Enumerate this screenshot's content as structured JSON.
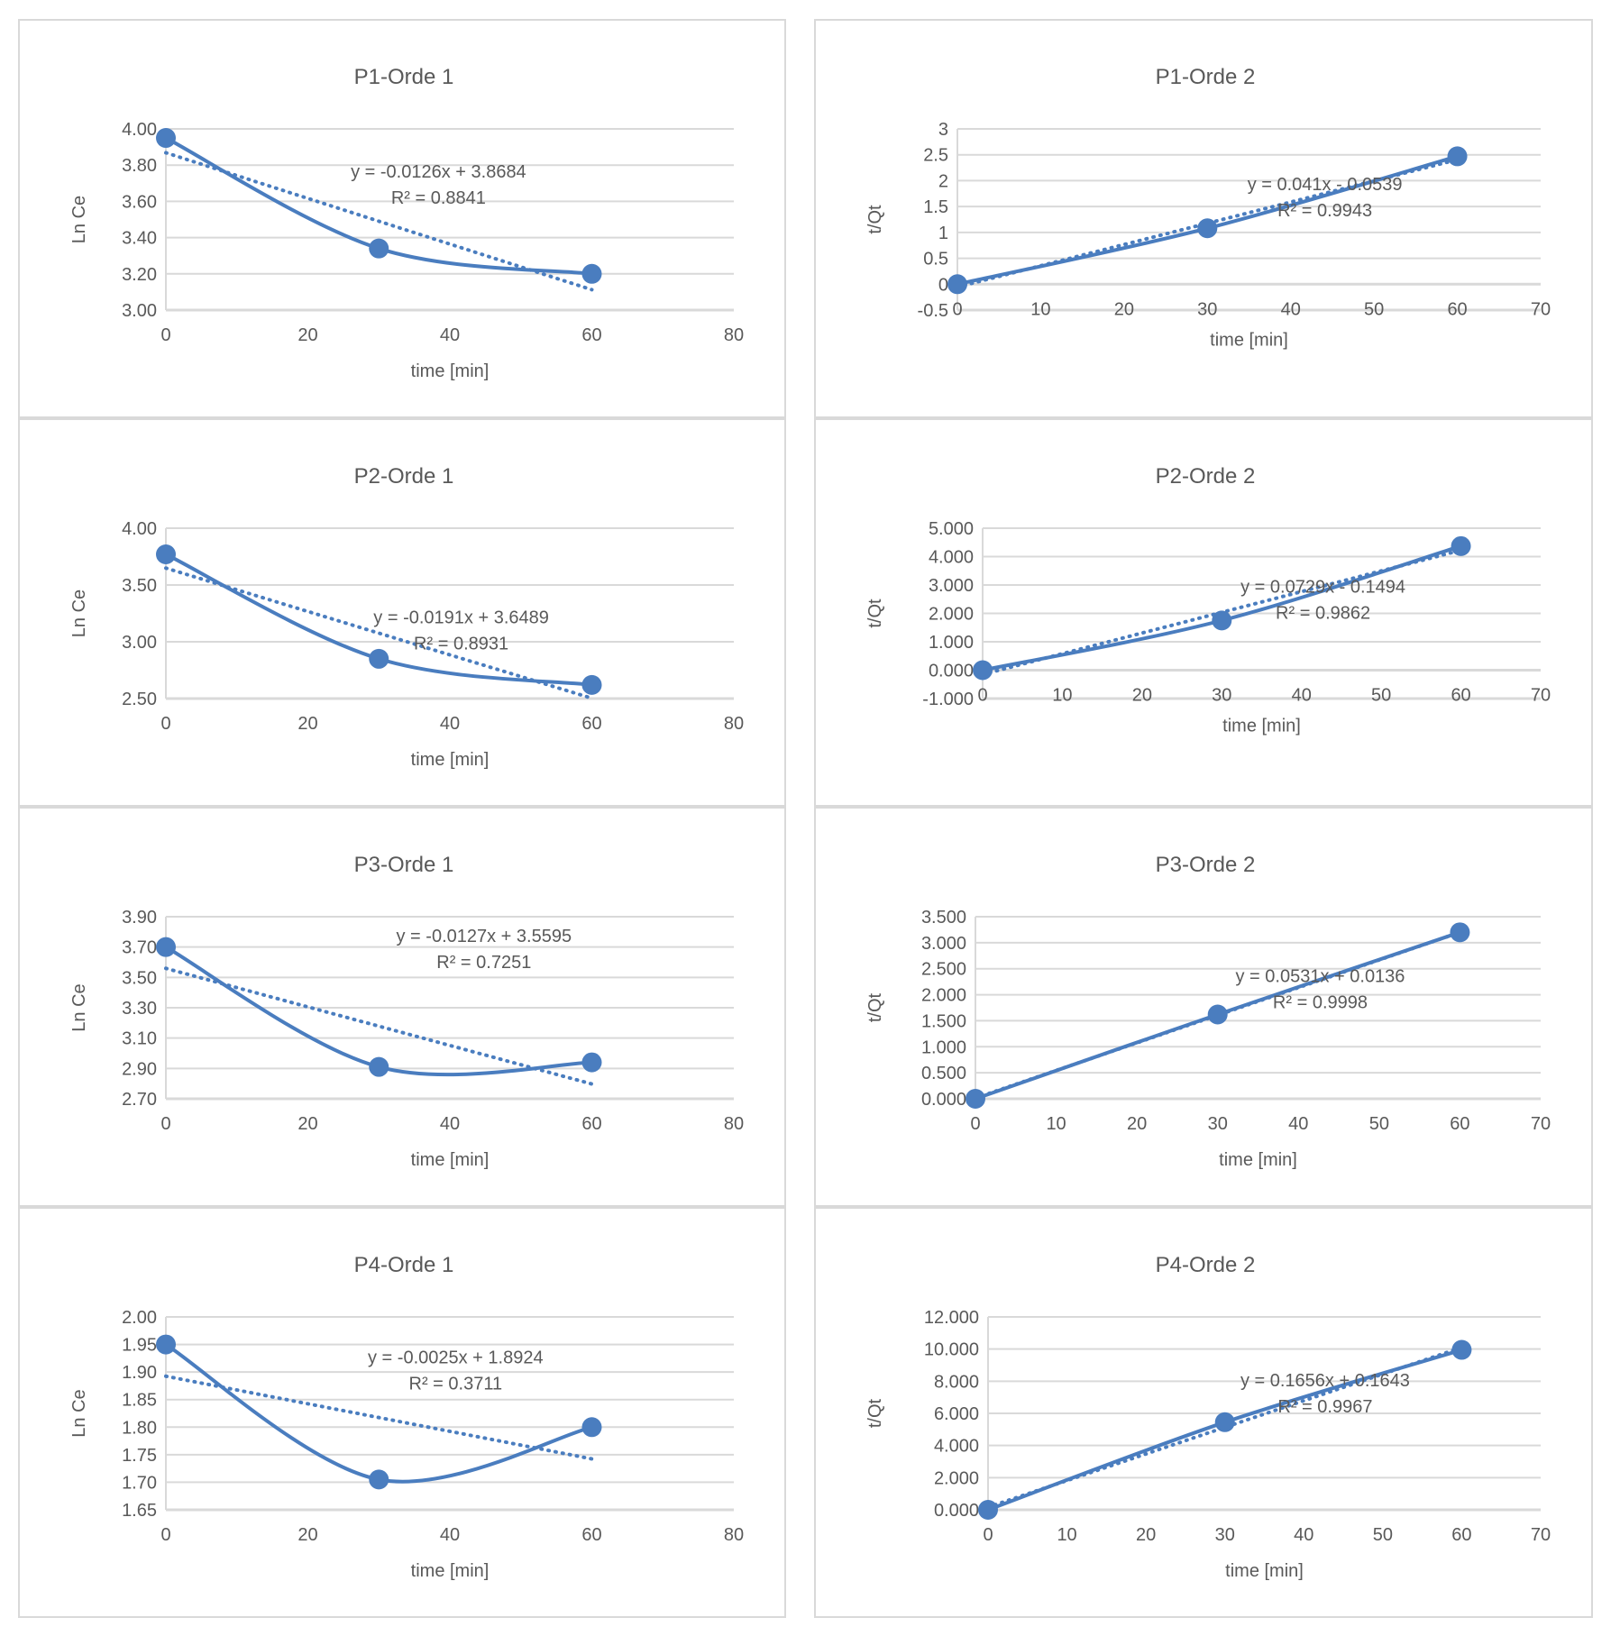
{
  "colors": {
    "series": "#4a7dbf",
    "grid": "#d9d9d9",
    "text": "#595959"
  },
  "chart_data": [
    {
      "type": "line",
      "title": "P1-Orde 1",
      "xlabel": "time [min]",
      "ylabel": "Ln Ce",
      "x": [
        0,
        30,
        60
      ],
      "y": [
        3.95,
        3.34,
        3.2
      ],
      "xlim": [
        0,
        80
      ],
      "xticks": [
        0,
        20,
        40,
        60,
        80
      ],
      "ylim": [
        3.0,
        4.0
      ],
      "yticks": [
        "3.00",
        "3.20",
        "3.40",
        "3.60",
        "3.80",
        "4.00"
      ],
      "trendline": {
        "type": "linear",
        "slope": -0.0126,
        "intercept": 3.8684,
        "equation": "y = -0.0126x + 3.8684",
        "r2": "R² = 0.8841"
      },
      "grid": true,
      "smoothed": true
    },
    {
      "type": "line",
      "title": "P1-Orde 2",
      "xlabel": "time [min]",
      "ylabel": "t/Qt",
      "x": [
        0,
        30,
        60
      ],
      "y": [
        0,
        1.08,
        2.47
      ],
      "xlim": [
        0,
        70
      ],
      "xticks": [
        0,
        10,
        20,
        30,
        40,
        50,
        60,
        70
      ],
      "ylim": [
        -0.5,
        3
      ],
      "yticks": [
        "-0.5",
        "0",
        "0.5",
        "1",
        "1.5",
        "2",
        "2.5",
        "3"
      ],
      "trendline": {
        "type": "linear",
        "slope": 0.041,
        "intercept": -0.0539,
        "equation": "y = 0.041x - 0.0539",
        "r2": "R² = 0.9943"
      },
      "grid": true,
      "smoothed": true
    },
    {
      "type": "line",
      "title": "P2-Orde 1",
      "xlabel": "time [min]",
      "ylabel": "Ln Ce",
      "x": [
        0,
        30,
        60
      ],
      "y": [
        3.77,
        2.85,
        2.62
      ],
      "xlim": [
        0,
        80
      ],
      "xticks": [
        0,
        20,
        40,
        60,
        80
      ],
      "ylim": [
        2.5,
        4.0
      ],
      "yticks": [
        "2.50",
        "3.00",
        "3.50",
        "4.00"
      ],
      "trendline": {
        "type": "linear",
        "slope": -0.0191,
        "intercept": 3.6489,
        "equation": "y = -0.0191x + 3.6489",
        "r2": "R² = 0.8931"
      },
      "grid": true,
      "smoothed": true
    },
    {
      "type": "line",
      "title": "P2-Orde 2",
      "xlabel": "time [min]",
      "ylabel": "t/Qt",
      "x": [
        0,
        30,
        60
      ],
      "y": [
        0,
        1.75,
        4.37
      ],
      "xlim": [
        0,
        70
      ],
      "xticks": [
        0,
        10,
        20,
        30,
        40,
        50,
        60,
        70
      ],
      "ylim": [
        -1,
        5
      ],
      "yticks": [
        "-1.000",
        "0.000",
        "1.000",
        "2.000",
        "3.000",
        "4.000",
        "5.000"
      ],
      "trendline": {
        "type": "linear",
        "slope": 0.0729,
        "intercept": -0.1494,
        "equation": "y = 0.0729x - 0.1494",
        "r2": "R² = 0.9862"
      },
      "grid": true,
      "smoothed": true
    },
    {
      "type": "line",
      "title": "P3-Orde 1",
      "xlabel": "time [min]",
      "ylabel": "Ln Ce",
      "x": [
        0,
        30,
        60
      ],
      "y": [
        3.7,
        2.91,
        2.94
      ],
      "xlim": [
        0,
        80
      ],
      "xticks": [
        0,
        20,
        40,
        60,
        80
      ],
      "ylim": [
        2.7,
        3.9
      ],
      "yticks": [
        "2.70",
        "2.90",
        "3.10",
        "3.30",
        "3.50",
        "3.70",
        "3.90"
      ],
      "trendline": {
        "type": "linear",
        "slope": -0.0127,
        "intercept": 3.5595,
        "equation": "y = -0.0127x + 3.5595",
        "r2": "R² = 0.7251"
      },
      "grid": true,
      "smoothed": true
    },
    {
      "type": "line",
      "title": "P3-Orde 2",
      "xlabel": "time [min]",
      "ylabel": "t/Qt",
      "x": [
        0,
        30,
        60
      ],
      "y": [
        0,
        1.62,
        3.2
      ],
      "xlim": [
        0,
        70
      ],
      "xticks": [
        0,
        10,
        20,
        30,
        40,
        50,
        60,
        70
      ],
      "ylim": [
        0,
        3.5
      ],
      "yticks": [
        "0.000",
        "0.500",
        "1.000",
        "1.500",
        "2.000",
        "2.500",
        "3.000",
        "3.500"
      ],
      "trendline": {
        "type": "linear",
        "slope": 0.0531,
        "intercept": 0.0136,
        "equation": "y = 0.0531x + 0.0136",
        "r2": "R² = 0.9998"
      },
      "grid": true,
      "smoothed": true
    },
    {
      "type": "line",
      "title": "P4-Orde 1",
      "xlabel": "time [min]",
      "ylabel": "Ln Ce",
      "x": [
        0,
        30,
        60
      ],
      "y": [
        1.95,
        1.705,
        1.8
      ],
      "xlim": [
        0,
        80
      ],
      "xticks": [
        0,
        20,
        40,
        60,
        80
      ],
      "ylim": [
        1.65,
        2.0
      ],
      "yticks": [
        "1.65",
        "1.70",
        "1.75",
        "1.80",
        "1.85",
        "1.90",
        "1.95",
        "2.00"
      ],
      "trendline": {
        "type": "linear",
        "slope": -0.0025,
        "intercept": 1.8924,
        "equation": "y = -0.0025x + 1.8924",
        "r2": "R² = 0.3711"
      },
      "grid": true,
      "smoothed": true
    },
    {
      "type": "line",
      "title": "P4-Orde 2",
      "xlabel": "time [min]",
      "ylabel": "t/Qt",
      "x": [
        0,
        30,
        60
      ],
      "y": [
        0,
        5.45,
        9.95
      ],
      "xlim": [
        0,
        70
      ],
      "xticks": [
        0,
        10,
        20,
        30,
        40,
        50,
        60,
        70
      ],
      "ylim": [
        0,
        12
      ],
      "yticks": [
        "0.000",
        "2.000",
        "4.000",
        "6.000",
        "8.000",
        "10.000",
        "12.000"
      ],
      "trendline": {
        "type": "linear",
        "slope": 0.1656,
        "intercept": 0.1643,
        "equation": "y = 0.1656x + 0.1643",
        "r2": "R² = 0.9967"
      },
      "grid": true,
      "smoothed": true
    }
  ]
}
